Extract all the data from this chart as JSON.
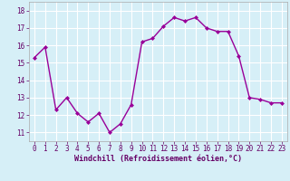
{
  "x": [
    0,
    1,
    2,
    3,
    4,
    5,
    6,
    7,
    8,
    9,
    10,
    11,
    12,
    13,
    14,
    15,
    16,
    17,
    18,
    19,
    20,
    21,
    22,
    23
  ],
  "y": [
    15.3,
    15.9,
    12.3,
    13.0,
    12.1,
    11.6,
    12.1,
    11.0,
    11.5,
    12.6,
    16.2,
    16.4,
    17.1,
    17.6,
    17.4,
    17.6,
    17.0,
    16.8,
    16.8,
    15.4,
    13.0,
    12.9,
    12.7,
    12.7
  ],
  "line_color": "#990099",
  "marker": "D",
  "marker_size": 2.0,
  "linewidth": 1.0,
  "xlabel": "Windchill (Refroidissement éolien,°C)",
  "xlabel_fontsize": 6.0,
  "ylim": [
    10.5,
    18.5
  ],
  "xlim": [
    -0.5,
    23.5
  ],
  "yticks": [
    11,
    12,
    13,
    14,
    15,
    16,
    17,
    18
  ],
  "xticks": [
    0,
    1,
    2,
    3,
    4,
    5,
    6,
    7,
    8,
    9,
    10,
    11,
    12,
    13,
    14,
    15,
    16,
    17,
    18,
    19,
    20,
    21,
    22,
    23
  ],
  "tick_fontsize": 5.5,
  "tick_color": "#660066",
  "label_color": "#660066",
  "background_color": "#d6eff7",
  "grid_color": "#ffffff",
  "grid_linewidth": 0.8,
  "spine_color": "#aaaaaa"
}
